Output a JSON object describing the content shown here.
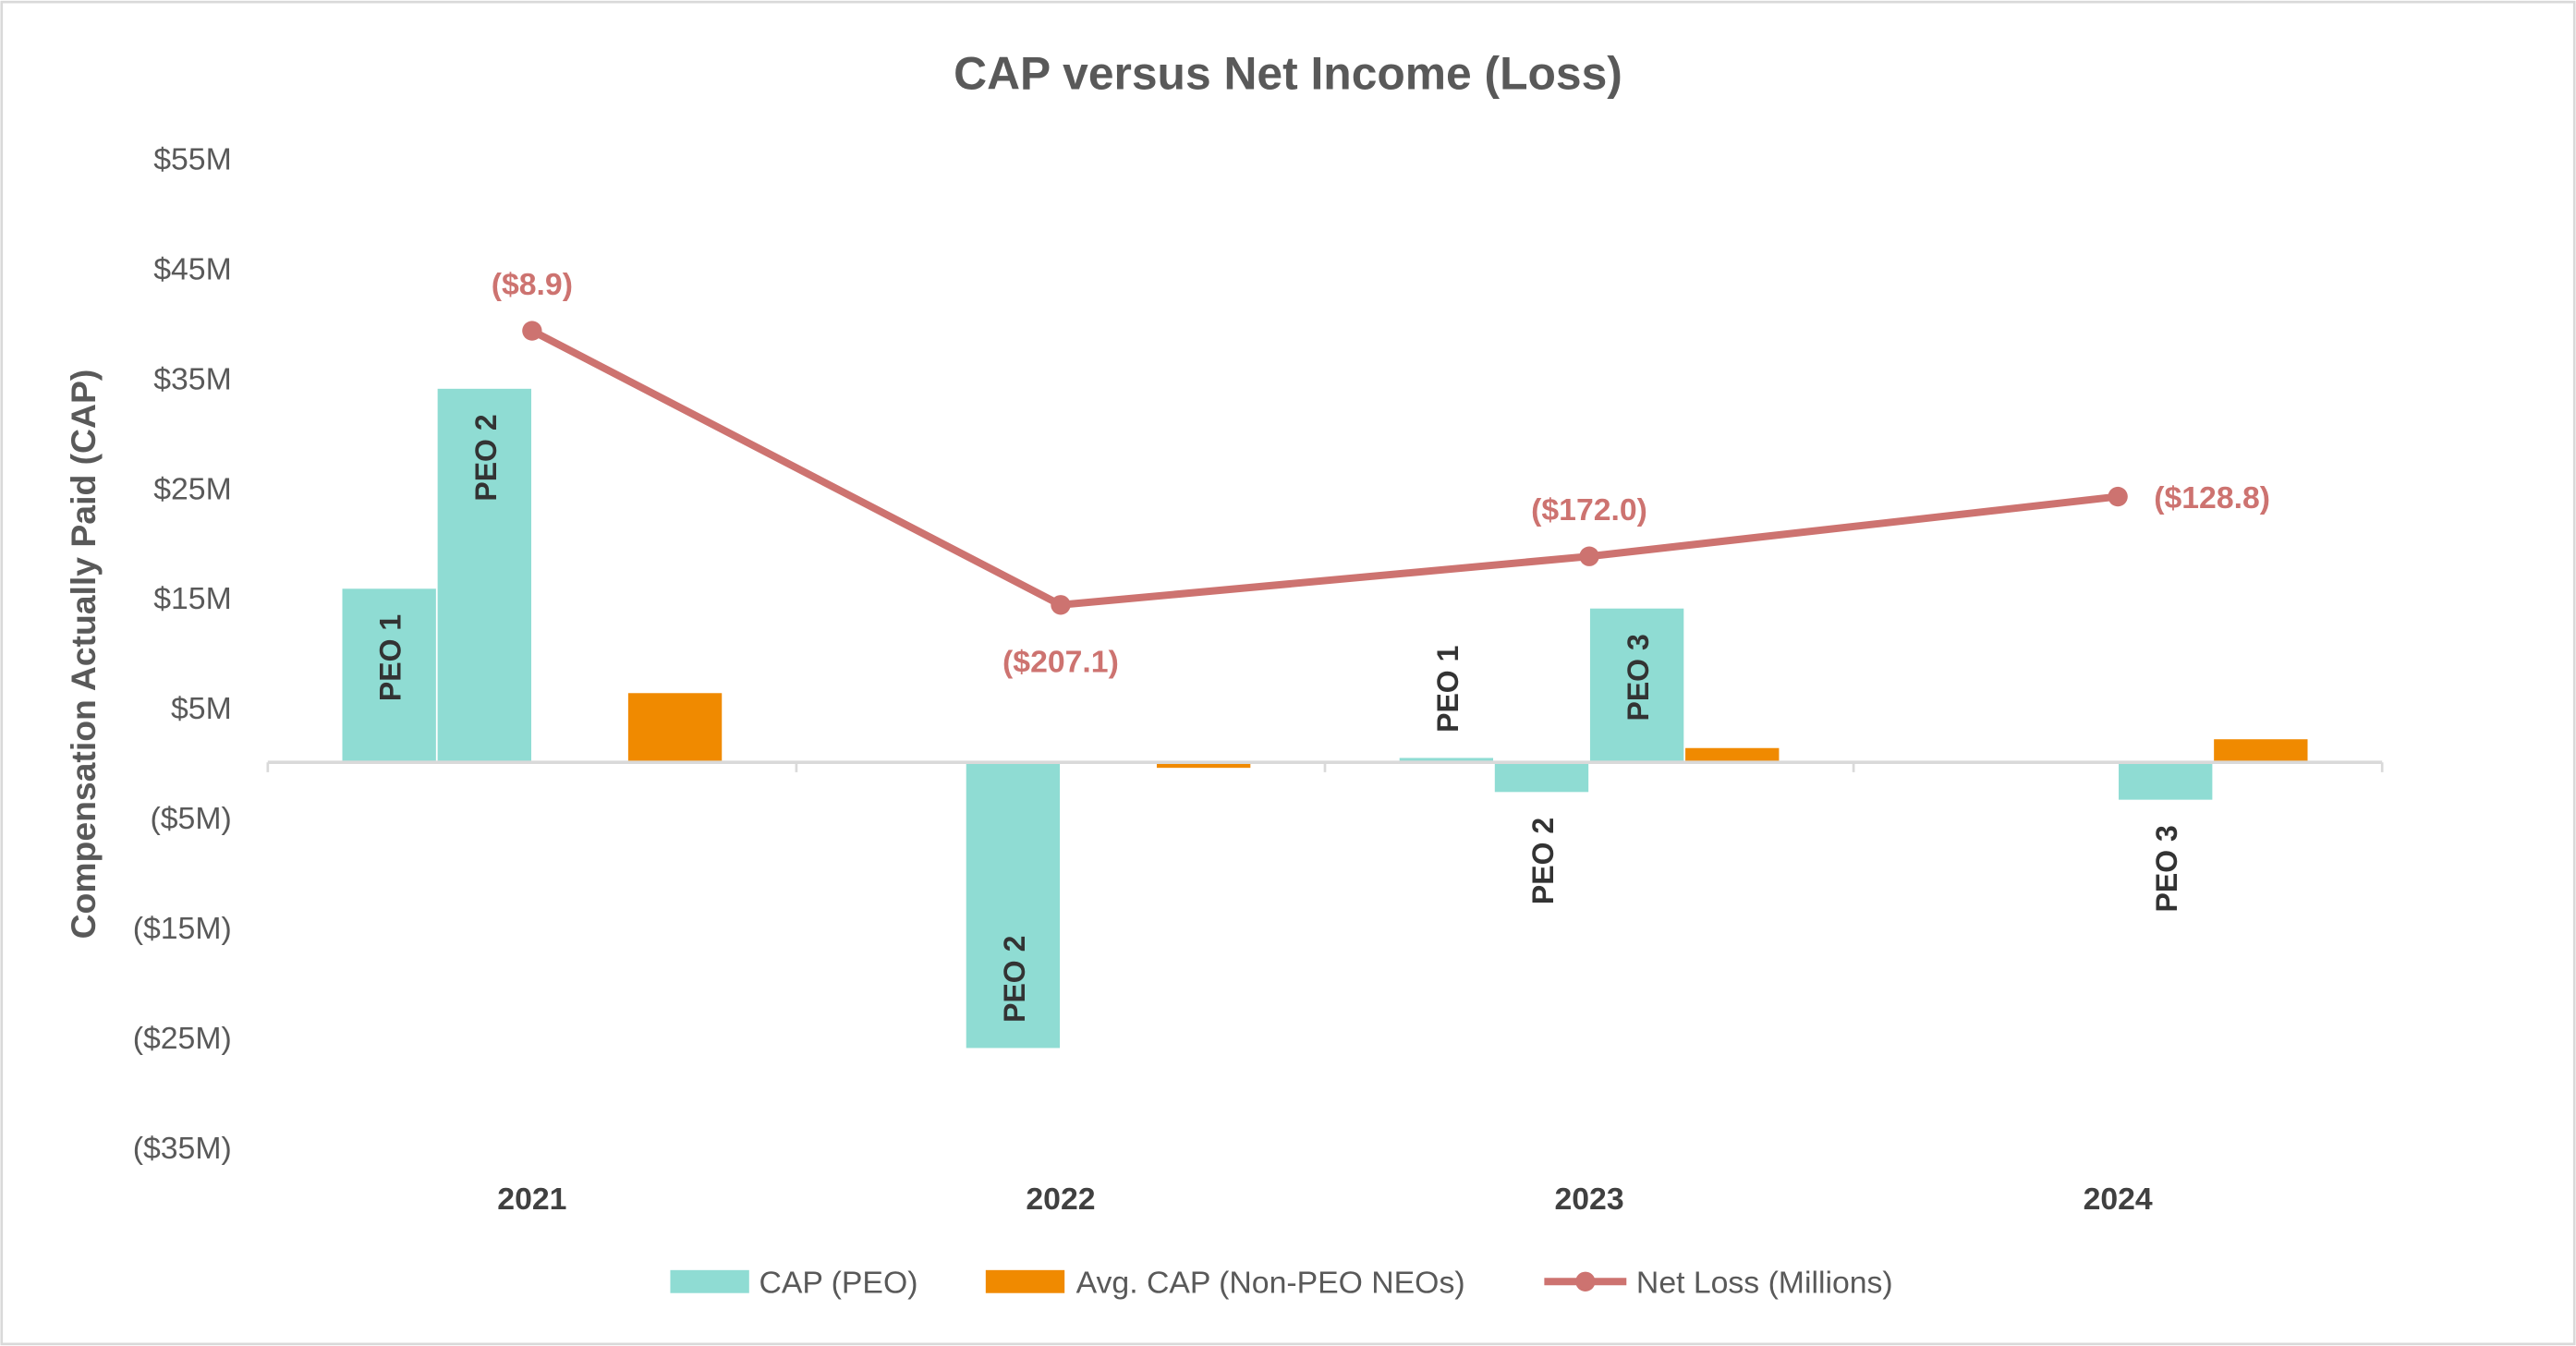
{
  "chart_data": {
    "type": "bar",
    "title": "CAP versus Net Income (Loss)",
    "ylabel": "Compensation Actually Paid (CAP)",
    "xlabel": "",
    "categories": [
      "2021",
      "2022",
      "2023",
      "2024"
    ],
    "ylim": [
      -35,
      55
    ],
    "y_ticks": [
      55,
      45,
      35,
      25,
      15,
      5,
      -5,
      -15,
      -25,
      -35
    ],
    "y_tick_labels": [
      "$55M",
      "$45M",
      "$35M",
      "$25M",
      "$15M",
      "$5M",
      "($5M)",
      "($15M)",
      "($25M)",
      "($35M)"
    ],
    "y2lim": [
      -599,
      116
    ],
    "y2_axis_visible": false,
    "grid": false,
    "legend_position": "bottom",
    "legend": [
      "CAP (PEO)",
      "Avg. CAP (Non-PEO NEOs)",
      "Net Loss (Millions)"
    ],
    "bar_series": [
      {
        "legend": "CAP (PEO)",
        "label": "PEO 1",
        "color": "#8FDCD3",
        "values": [
          15.8,
          null,
          0.4,
          null
        ]
      },
      {
        "legend": "CAP (PEO)",
        "label": "PEO 2",
        "color": "#8FDCD3",
        "values": [
          34.0,
          -26.0,
          -2.7,
          null
        ]
      },
      {
        "legend": "CAP (PEO)",
        "label": "PEO 3",
        "color": "#8FDCD3",
        "values": [
          null,
          null,
          14.0,
          -3.4
        ]
      },
      {
        "legend": "Avg. CAP (Non-PEO NEOs)",
        "label": "",
        "color": "#F08A00",
        "values": [
          6.3,
          -0.5,
          1.3,
          2.1
        ]
      }
    ],
    "line_series": {
      "name": "Net Loss (Millions)",
      "color": "#CD7370",
      "values": [
        -8.9,
        -207.1,
        -172.0,
        -128.8
      ],
      "data_labels": [
        "($8.9)",
        "($207.1)",
        "($172.0)",
        "($128.8)"
      ],
      "label_positions": [
        "above",
        "below",
        "above",
        "right"
      ]
    }
  }
}
